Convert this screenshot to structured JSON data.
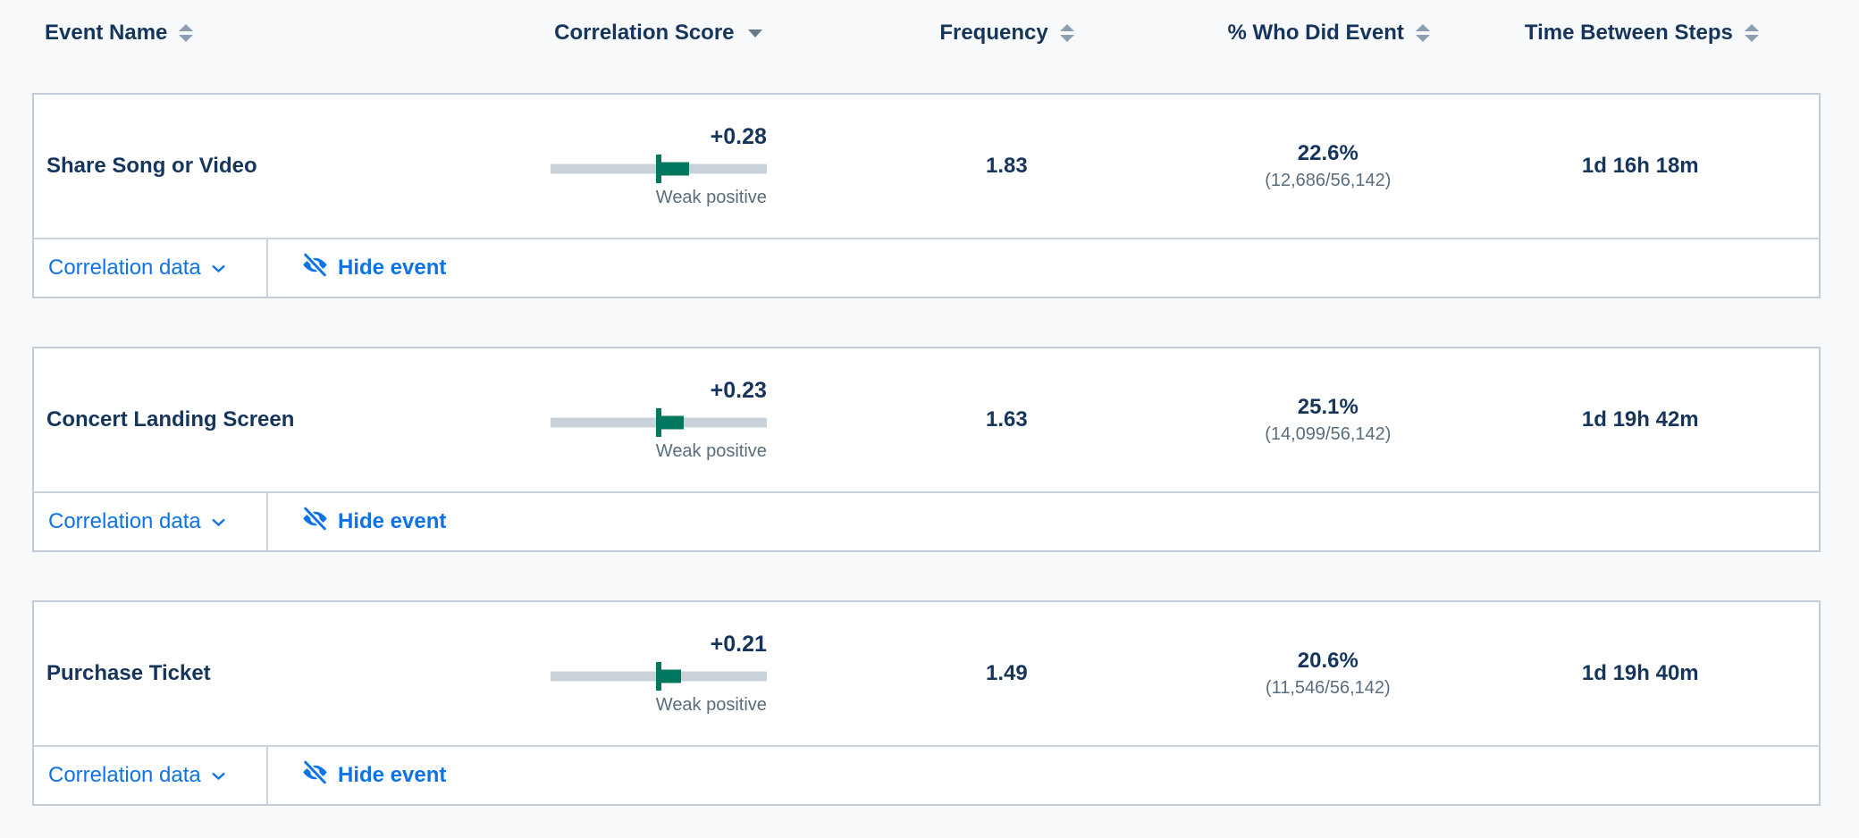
{
  "header": {
    "columns": [
      {
        "label": "Event Name",
        "sortable": true,
        "sorted": null
      },
      {
        "label": "Correlation Score",
        "sortable": true,
        "sorted": "desc"
      },
      {
        "label": "Frequency",
        "sortable": true,
        "sorted": null
      },
      {
        "label": "% Who Did Event",
        "sortable": true,
        "sorted": null
      },
      {
        "label": "Time Between Steps",
        "sortable": true,
        "sorted": null
      }
    ]
  },
  "row_actions": {
    "correlation_data": "Correlation data",
    "hide_event": "Hide event"
  },
  "rows": [
    {
      "event_name": "Share Song or Video",
      "correlation": {
        "display": "+0.28",
        "value": 0.28,
        "strength": "Weak positive"
      },
      "frequency": "1.83",
      "pct_who_did": "22.6%",
      "pct_fraction": "(12,686/56,142)",
      "time_between_steps": "1d 16h 18m"
    },
    {
      "event_name": "Concert Landing Screen",
      "correlation": {
        "display": "+0.23",
        "value": 0.23,
        "strength": "Weak positive"
      },
      "frequency": "1.63",
      "pct_who_did": "25.1%",
      "pct_fraction": "(14,099/56,142)",
      "time_between_steps": "1d 19h 42m"
    },
    {
      "event_name": "Purchase Ticket",
      "correlation": {
        "display": "+0.21",
        "value": 0.21,
        "strength": "Weak positive"
      },
      "frequency": "1.49",
      "pct_who_did": "20.6%",
      "pct_fraction": "(11,546/56,142)",
      "time_between_steps": "1d 19h 40m"
    }
  ],
  "colors": {
    "navy_text": "#16355d",
    "link_blue": "#0f73e6",
    "teal_positive": "#00785f",
    "track_gray": "#c9d2d9",
    "secondary_text": "#5a6d7c",
    "card_border": "#c3ccd6",
    "page_bg": "#f7f9fa"
  }
}
